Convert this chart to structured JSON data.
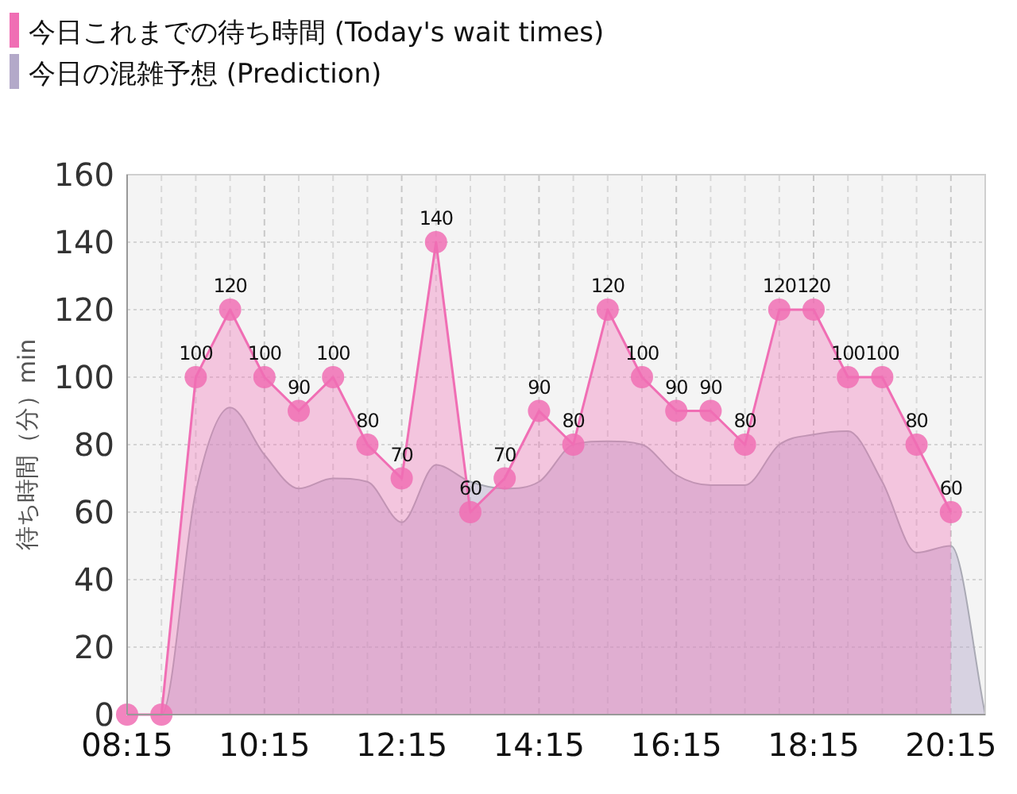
{
  "chart_data": {
    "type": "area",
    "ylabel": "待ち時間（分）min",
    "xlim": [
      8.25,
      20.75
    ],
    "ylim": [
      0,
      160
    ],
    "yticks": [
      0,
      20,
      40,
      60,
      80,
      100,
      120,
      140,
      160
    ],
    "xticks": [
      {
        "value": 8.25,
        "label": "08:15"
      },
      {
        "value": 8.75,
        "label": null
      },
      {
        "value": 9.25,
        "label": null
      },
      {
        "value": 9.75,
        "label": null
      },
      {
        "value": 10.25,
        "label": "10:15"
      },
      {
        "value": 10.75,
        "label": null
      },
      {
        "value": 11.25,
        "label": null
      },
      {
        "value": 11.75,
        "label": null
      },
      {
        "value": 12.25,
        "label": "12:15"
      },
      {
        "value": 12.75,
        "label": null
      },
      {
        "value": 13.25,
        "label": null
      },
      {
        "value": 13.75,
        "label": null
      },
      {
        "value": 14.25,
        "label": "14:15"
      },
      {
        "value": 14.75,
        "label": null
      },
      {
        "value": 15.25,
        "label": null
      },
      {
        "value": 15.75,
        "label": null
      },
      {
        "value": 16.25,
        "label": "16:15"
      },
      {
        "value": 16.75,
        "label": null
      },
      {
        "value": 17.25,
        "label": null
      },
      {
        "value": 17.75,
        "label": null
      },
      {
        "value": 18.25,
        "label": "18:15"
      },
      {
        "value": 18.75,
        "label": null
      },
      {
        "value": 19.25,
        "label": null
      },
      {
        "value": 19.75,
        "label": null
      },
      {
        "value": 20.25,
        "label": "20:15"
      }
    ],
    "grid": true,
    "legend": "top left",
    "series": [
      {
        "name": "今日の混雑予想 (Prediction)",
        "color": "#b3a9c9",
        "marker": "none",
        "x": [
          8.25,
          8.75,
          9.25,
          9.75,
          10.25,
          10.75,
          11.25,
          11.75,
          12.25,
          12.75,
          13.25,
          13.75,
          14.25,
          14.75,
          15.25,
          15.75,
          16.25,
          16.75,
          17.25,
          17.75,
          18.25,
          18.75,
          19.25,
          19.75,
          20.25,
          20.75
        ],
        "values": [
          0,
          0,
          66,
          91,
          77,
          67,
          70,
          69,
          57,
          74,
          69,
          67,
          69,
          80,
          81,
          80,
          71,
          68,
          68,
          80,
          83,
          84,
          69,
          48,
          50,
          0
        ]
      },
      {
        "name": "今日これまでの待ち時間 (Today's wait times)",
        "color": "#f06eb4",
        "marker": "circle",
        "line_style": "solid",
        "x": [
          8.25,
          8.75,
          9.25,
          9.75,
          10.25,
          10.75,
          11.25,
          11.75,
          12.25,
          12.75,
          13.25,
          13.75,
          14.25,
          14.75,
          15.25,
          15.75,
          16.25,
          16.75,
          17.25,
          17.75,
          18.25,
          18.75,
          19.25,
          19.75,
          20.25
        ],
        "values": [
          0,
          0,
          100,
          120,
          100,
          90,
          100,
          80,
          70,
          140,
          60,
          70,
          90,
          80,
          120,
          100,
          90,
          90,
          80,
          120,
          120,
          100,
          100,
          80,
          60
        ],
        "value_labels": [
          null,
          null,
          "100",
          "120",
          "100",
          "90",
          "100",
          "80",
          "70",
          "140",
          "60",
          "70",
          "90",
          "80",
          "120",
          "100",
          "90",
          "90",
          "80",
          "120",
          "120",
          "100",
          "100",
          "80",
          "60"
        ]
      }
    ]
  }
}
